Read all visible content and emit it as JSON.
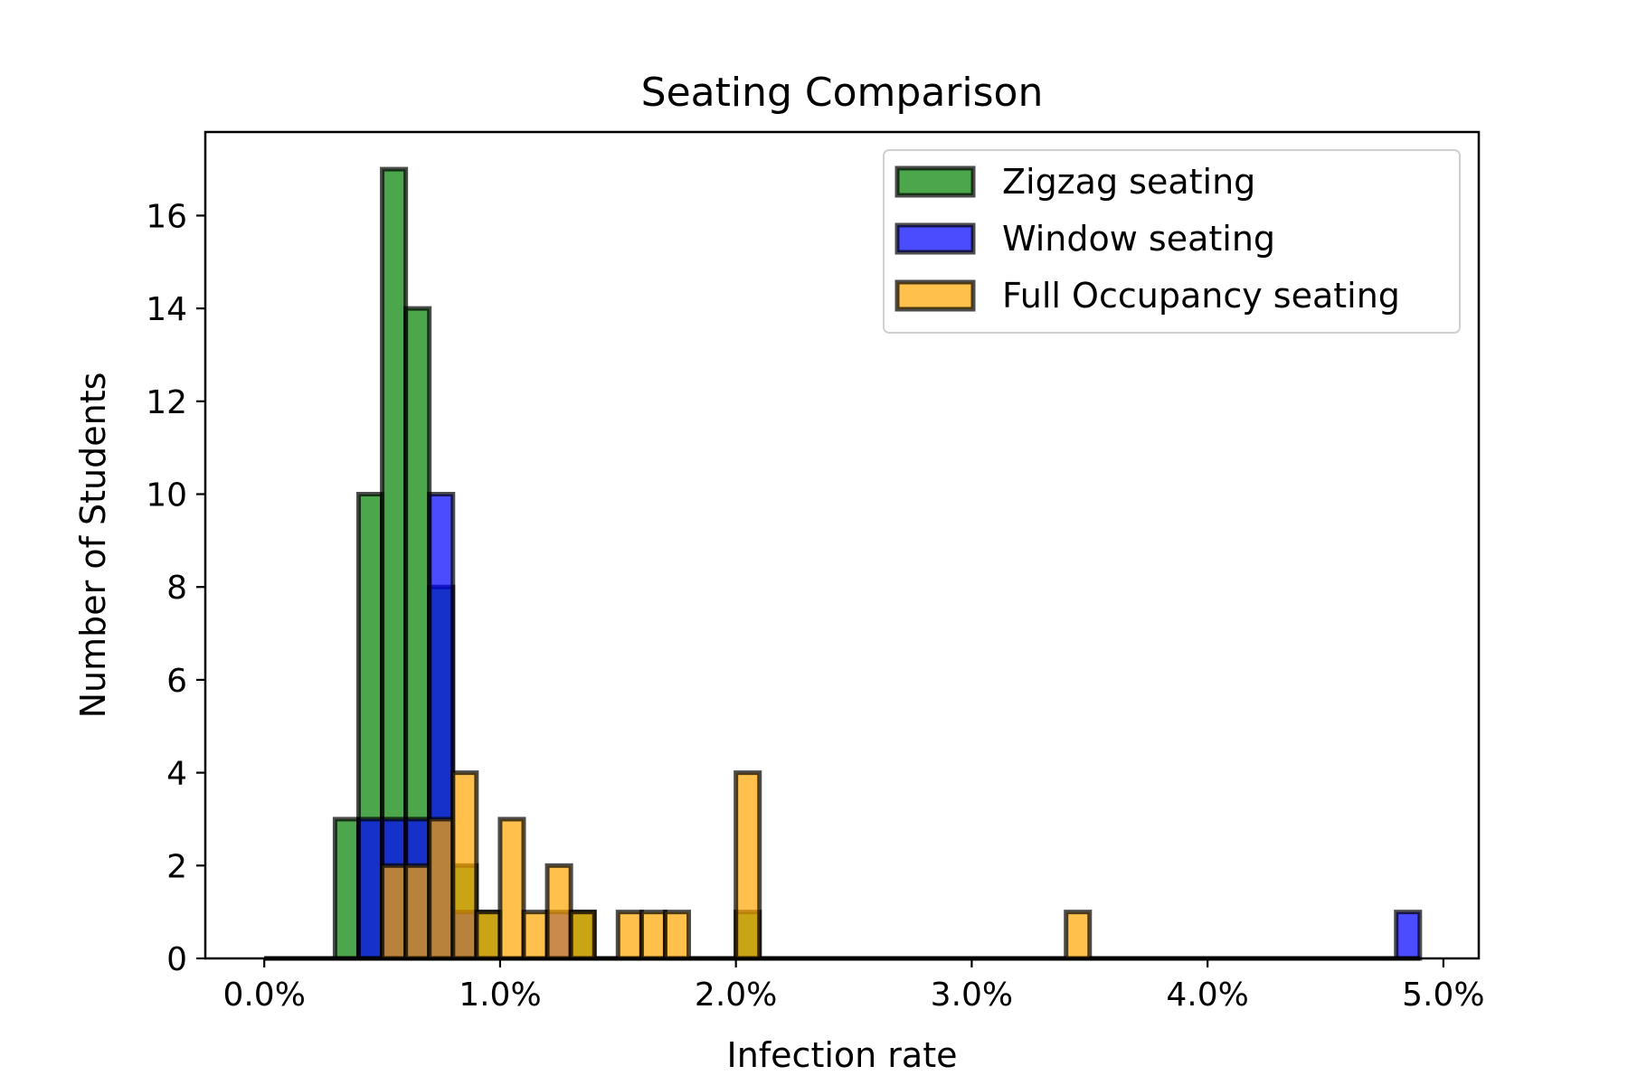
{
  "chart_data": {
    "type": "bar",
    "title": "Seating Comparison",
    "xlabel": "Infection rate",
    "ylabel": "Number of Students",
    "xlim": [
      -0.0025,
      0.0515
    ],
    "ylim": [
      0,
      17.8
    ],
    "xticks": [
      0,
      0.01,
      0.02,
      0.03,
      0.04,
      0.05
    ],
    "xtick_labels": [
      "0.0%",
      "1.0%",
      "2.0%",
      "3.0%",
      "4.0%",
      "5.0%"
    ],
    "yticks": [
      0,
      2,
      4,
      6,
      8,
      10,
      12,
      14,
      16
    ],
    "ytick_labels": [
      "0",
      "2",
      "4",
      "6",
      "8",
      "10",
      "12",
      "14",
      "16"
    ],
    "bin_width": 0.001,
    "legend_position": "upper right",
    "grid": false,
    "series": [
      {
        "name": "Zigzag seating",
        "color": "#008000",
        "bins": [
          {
            "x0": 0.003,
            "count": 3
          },
          {
            "x0": 0.004,
            "count": 10
          },
          {
            "x0": 0.005,
            "count": 17
          },
          {
            "x0": 0.006,
            "count": 14
          },
          {
            "x0": 0.007,
            "count": 8
          },
          {
            "x0": 0.008,
            "count": 2
          },
          {
            "x0": 0.009,
            "count": 1
          },
          {
            "x0": 0.013,
            "count": 1
          },
          {
            "x0": 0.02,
            "count": 1
          }
        ]
      },
      {
        "name": "Window seating",
        "color": "#0000ff",
        "bins": [
          {
            "x0": 0.004,
            "count": 3
          },
          {
            "x0": 0.005,
            "count": 3
          },
          {
            "x0": 0.006,
            "count": 3
          },
          {
            "x0": 0.007,
            "count": 10
          },
          {
            "x0": 0.008,
            "count": 1
          },
          {
            "x0": 0.012,
            "count": 1
          },
          {
            "x0": 0.048,
            "count": 1
          }
        ]
      },
      {
        "name": "Full Occupancy seating",
        "color": "#ffa500",
        "bins": [
          {
            "x0": 0.005,
            "count": 2
          },
          {
            "x0": 0.006,
            "count": 2
          },
          {
            "x0": 0.007,
            "count": 3
          },
          {
            "x0": 0.008,
            "count": 4
          },
          {
            "x0": 0.009,
            "count": 1
          },
          {
            "x0": 0.01,
            "count": 3
          },
          {
            "x0": 0.011,
            "count": 1
          },
          {
            "x0": 0.012,
            "count": 2
          },
          {
            "x0": 0.013,
            "count": 1
          },
          {
            "x0": 0.015,
            "count": 1
          },
          {
            "x0": 0.016,
            "count": 1
          },
          {
            "x0": 0.017,
            "count": 1
          },
          {
            "x0": 0.02,
            "count": 4
          },
          {
            "x0": 0.034,
            "count": 1
          }
        ]
      }
    ]
  }
}
